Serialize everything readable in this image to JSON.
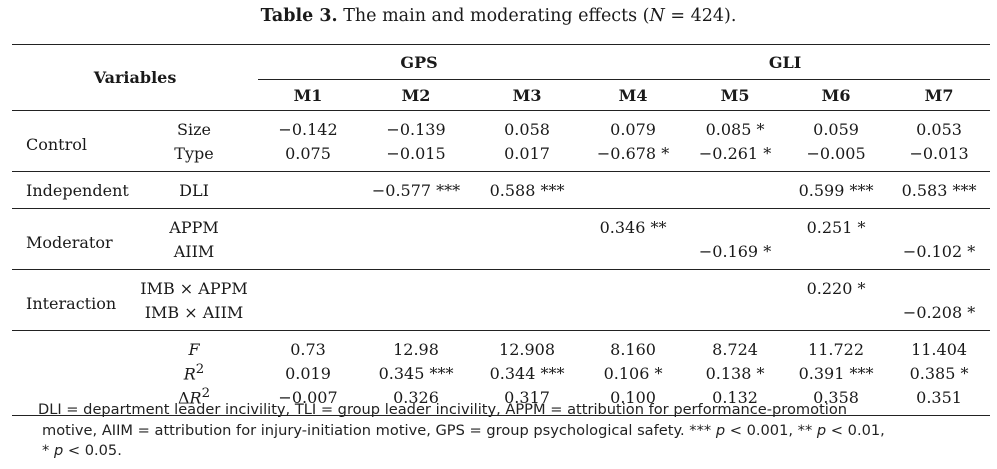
{
  "caption": {
    "label": "Table 3.",
    "text_before": " The main and moderating effects (",
    "n_symbol": "N",
    "text_after": " = 424)."
  },
  "header": {
    "variables": "Variables",
    "group_gps": "GPS",
    "group_gli": "GLI",
    "models": [
      "M1",
      "M2",
      "M3",
      "M4",
      "M5",
      "M6",
      "M7"
    ]
  },
  "rows": {
    "control_label": "Control",
    "size": {
      "name": "Size",
      "values": [
        "−0.142",
        "−0.139",
        "0.058",
        "0.079",
        "0.085 *",
        "0.059",
        "0.053"
      ]
    },
    "type": {
      "name": "Type",
      "values": [
        "0.075",
        "−0.015",
        "0.017",
        "−0.678 *",
        "−0.261 *",
        "−0.005",
        "−0.013"
      ]
    },
    "independent_label": "Independent",
    "dli": {
      "name": "DLI",
      "values": [
        "",
        "−0.577 ***",
        "0.588 ***",
        "",
        "",
        "0.599 ***",
        "0.583 ***"
      ]
    },
    "moderator_label": "Moderator",
    "appm": {
      "name": "APPM",
      "values": [
        "",
        "",
        "",
        "0.346 **",
        "",
        "0.251 *",
        ""
      ]
    },
    "aiim": {
      "name": "AIIM",
      "values": [
        "",
        "",
        "",
        "",
        "−0.169 *",
        "",
        "−0.102 *"
      ]
    },
    "interaction_label": "Interaction",
    "imb_appm": {
      "name": "IMB × APPM",
      "values": [
        "",
        "",
        "",
        "",
        "",
        "0.220 *",
        ""
      ]
    },
    "imb_aiim": {
      "name": "IMB × AIIM",
      "values": [
        "",
        "",
        "",
        "",
        "",
        "",
        "−0.208 *"
      ]
    },
    "f": {
      "name": "F",
      "values": [
        "0.73",
        "12.98",
        "12.908",
        "8.160",
        "8.724",
        "11.722",
        "11.404"
      ]
    },
    "r2": {
      "name_base": "R",
      "name_sup": "2",
      "values": [
        "0.019",
        "0.345 ***",
        "0.344 ***",
        "0.106 *",
        "0.138 *",
        "0.391 ***",
        "0.385 *"
      ]
    },
    "dr2": {
      "name_prefix": "Δ",
      "name_base": "R",
      "name_sup": "2",
      "values": [
        "−0.007",
        "0.326",
        "0.317",
        "0.100",
        "0.132",
        "0.358",
        "0.351"
      ]
    }
  },
  "notes": {
    "line1": "DLI = department leader incivility, TLI = group leader incivility, APPM = attribution for performance-promotion",
    "line2_text": "motive, AIIM = attribution for injury-initiation motive, GPS = group psychological safety. ***",
    "p_symbol": "p",
    "sig1": " < 0.001, ** ",
    "sig2": " < 0.01,",
    "line3_prefix": "* ",
    "sig3": " < 0.05."
  }
}
